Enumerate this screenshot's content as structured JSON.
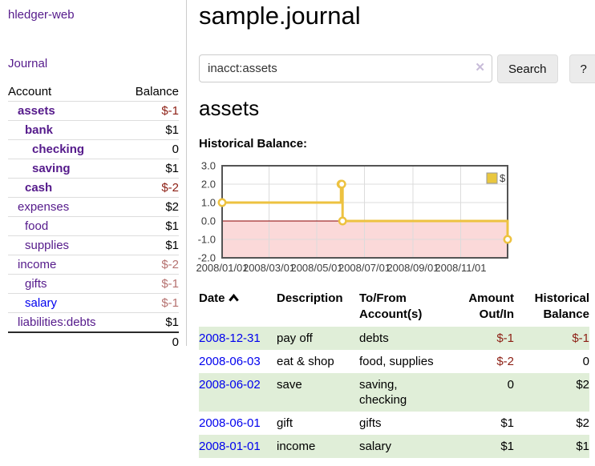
{
  "sidebar": {
    "app_title": "hledger-web",
    "nav": {
      "journal_label": "Journal"
    },
    "accounts_table": {
      "account_header": "Account",
      "balance_header": "Balance",
      "rows": [
        {
          "label": "assets",
          "balance": "$-1",
          "depth": 1,
          "bold": true,
          "balance_style": "neg-strong",
          "link_style": "purple"
        },
        {
          "label": "bank",
          "balance": "$1",
          "depth": 2,
          "bold": true,
          "balance_style": "plain",
          "link_style": "purple"
        },
        {
          "label": "checking",
          "balance": "0",
          "depth": 3,
          "bold": true,
          "balance_style": "plain",
          "link_style": "purple"
        },
        {
          "label": "saving",
          "balance": "$1",
          "depth": 3,
          "bold": true,
          "balance_style": "plain",
          "link_style": "purple"
        },
        {
          "label": "cash",
          "balance": "$-2",
          "depth": 2,
          "bold": true,
          "balance_style": "neg-strong",
          "link_style": "purple"
        },
        {
          "label": "expenses",
          "balance": "$2",
          "depth": 1,
          "bold": false,
          "balance_style": "plain",
          "link_style": "purple"
        },
        {
          "label": "food",
          "balance": "$1",
          "depth": 2,
          "bold": false,
          "balance_style": "plain",
          "link_style": "purple"
        },
        {
          "label": "supplies",
          "balance": "$1",
          "depth": 2,
          "bold": false,
          "balance_style": "plain",
          "link_style": "purple"
        },
        {
          "label": "income",
          "balance": "$-2",
          "depth": 1,
          "bold": false,
          "balance_style": "neg-soft",
          "link_style": "purple"
        },
        {
          "label": "gifts",
          "balance": "$-1",
          "depth": 2,
          "bold": false,
          "balance_style": "neg-soft",
          "link_style": "purple"
        },
        {
          "label": "salary",
          "balance": "$-1",
          "depth": 2,
          "bold": false,
          "balance_style": "neg-soft",
          "link_style": "blue"
        },
        {
          "label": "liabilities:debts",
          "balance": "$1",
          "depth": 1,
          "bold": false,
          "balance_style": "plain",
          "link_style": "purple"
        }
      ],
      "total": "0"
    }
  },
  "header": {
    "title": "sample.journal"
  },
  "search": {
    "value": "inacct:assets",
    "clear_icon": "✕",
    "button_label": "Search",
    "help_label": "?"
  },
  "account_page": {
    "title": "assets",
    "chart_label": "Historical Balance:"
  },
  "chart_data": {
    "type": "line",
    "title": "Historical Balance",
    "x_range": [
      "2008/01/01",
      "2008/12/31"
    ],
    "y_range": [
      -2.0,
      3.0
    ],
    "x_ticks": [
      {
        "date": "2008/01/01",
        "label": "2008/01/01"
      },
      {
        "date": "2008/03/01",
        "label": "2008/03/01"
      },
      {
        "date": "2008/05/01",
        "label": "2008/05/01"
      },
      {
        "date": "2008/07/01",
        "label": "2008/07/01"
      },
      {
        "date": "2008/09/01",
        "label": "2008/09/01"
      },
      {
        "date": "2008/11/01",
        "label": "2008/11/01"
      }
    ],
    "y_ticks": [
      {
        "value": 3,
        "label": "3.0"
      },
      {
        "value": 2,
        "label": "2.0"
      },
      {
        "value": 1,
        "label": "1.0"
      },
      {
        "value": 0,
        "label": "0.0"
      },
      {
        "value": -1,
        "label": "-1.0"
      },
      {
        "value": -2,
        "label": "-2.0"
      }
    ],
    "series": [
      {
        "name": "$",
        "style": "step",
        "points": [
          [
            "2008/01/01",
            1
          ],
          [
            "2008/06/01",
            2
          ],
          [
            "2008/06/02",
            2
          ],
          [
            "2008/06/03",
            0
          ],
          [
            "2008/12/31",
            -1
          ]
        ]
      }
    ],
    "legend_position": "top-right",
    "grid": true,
    "colors": {
      "line": "#edc240",
      "marker_fill": "#ffffff",
      "negative_fill": "#fbd9d9",
      "zero_line": "#8b0000",
      "grid": "#dcdcdc",
      "border": "#545454",
      "legend_box": "#e9c73f"
    }
  },
  "register_table": {
    "headers": {
      "date": "Date",
      "description": "Description",
      "accounts": "To/From Account(s)",
      "amount": "Amount Out/In",
      "balance": "Historical Balance"
    },
    "rows": [
      {
        "date": "2008-12-31",
        "description": "pay off",
        "accounts": "debts",
        "amount": "$-1",
        "amount_neg": true,
        "balance": "$-1",
        "balance_neg": true,
        "shaded": true
      },
      {
        "date": "2008-06-03",
        "description": "eat & shop",
        "accounts": "food, supplies",
        "amount": "$-2",
        "amount_neg": true,
        "balance": "0",
        "balance_neg": false,
        "shaded": false
      },
      {
        "date": "2008-06-02",
        "description": "save",
        "accounts": "saving, checking",
        "amount": "0",
        "amount_neg": false,
        "balance": "$2",
        "balance_neg": false,
        "shaded": true
      },
      {
        "date": "2008-06-01",
        "description": "gift",
        "accounts": "gifts",
        "amount": "$1",
        "amount_neg": false,
        "balance": "$2",
        "balance_neg": false,
        "shaded": false
      },
      {
        "date": "2008-01-01",
        "description": "income",
        "accounts": "salary",
        "amount": "$1",
        "amount_neg": false,
        "balance": "$1",
        "balance_neg": false,
        "shaded": true
      }
    ]
  },
  "colors": {
    "link_purple": "#551A8B",
    "link_blue": "#0000EE",
    "negative_strong": "#8d1f14",
    "negative_soft": "#b5716f",
    "row_shaded_green": "#e0eed8"
  }
}
